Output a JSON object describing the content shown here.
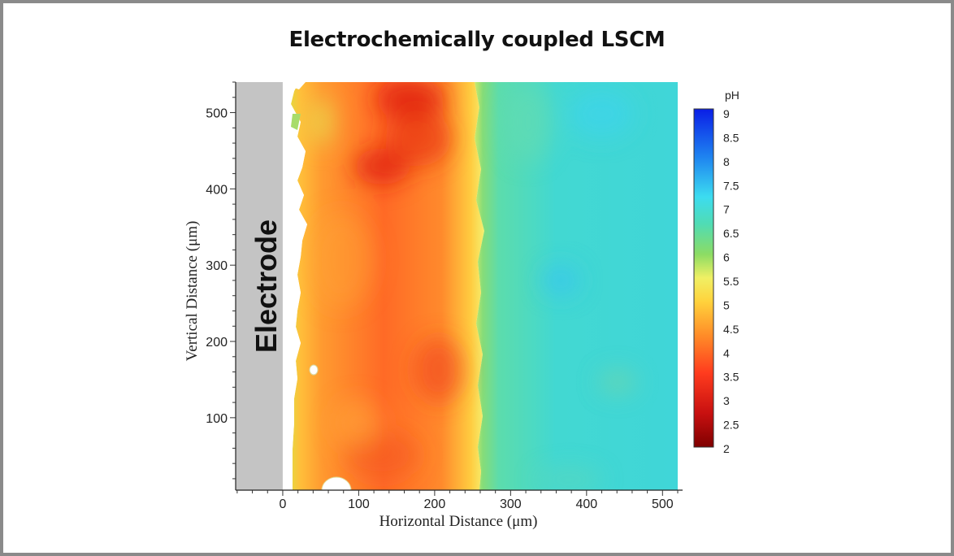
{
  "slide": {
    "title": "Electrochemically coupled LSCM"
  },
  "chart_data": {
    "type": "heatmap",
    "title": "",
    "xlabel": "Horizontal Distance (μm)",
    "ylabel": "Vertical Distance (μm)",
    "xlim": [
      -62,
      520
    ],
    "ylim": [
      5,
      540
    ],
    "x_ticks": [
      0,
      100,
      200,
      300,
      400,
      500
    ],
    "y_ticks": [
      100,
      200,
      300,
      400,
      500
    ],
    "grid": false,
    "colorbar": {
      "title": "pH",
      "range": [
        2,
        9
      ],
      "ticks": [
        "9",
        "8.5",
        "8",
        "7.5",
        "7",
        "6.5",
        "6",
        "5.5",
        "5",
        "4.5",
        "4",
        "3.5",
        "3",
        "2.5",
        "2"
      ],
      "colormap": [
        "#7f0000",
        "#c81010",
        "#ff3c1e",
        "#ff8c28",
        "#ffd23c",
        "#f0f064",
        "#8cdc64",
        "#50dcb4",
        "#3cdcf0",
        "#1e82f0",
        "#0a1ee6"
      ]
    },
    "annotations": [
      {
        "text": "Electrode",
        "region_x": [
          -62,
          0
        ]
      }
    ],
    "regions": [
      {
        "name": "electrode",
        "x": [
          -62,
          0
        ],
        "color": "#c4c4c4"
      },
      {
        "name": "acidic-zone",
        "x": [
          0,
          260
        ],
        "ph_range": [
          3.5,
          5
        ]
      },
      {
        "name": "neutral-zone",
        "x": [
          260,
          520
        ],
        "ph_range": [
          6.5,
          7.5
        ]
      }
    ]
  }
}
